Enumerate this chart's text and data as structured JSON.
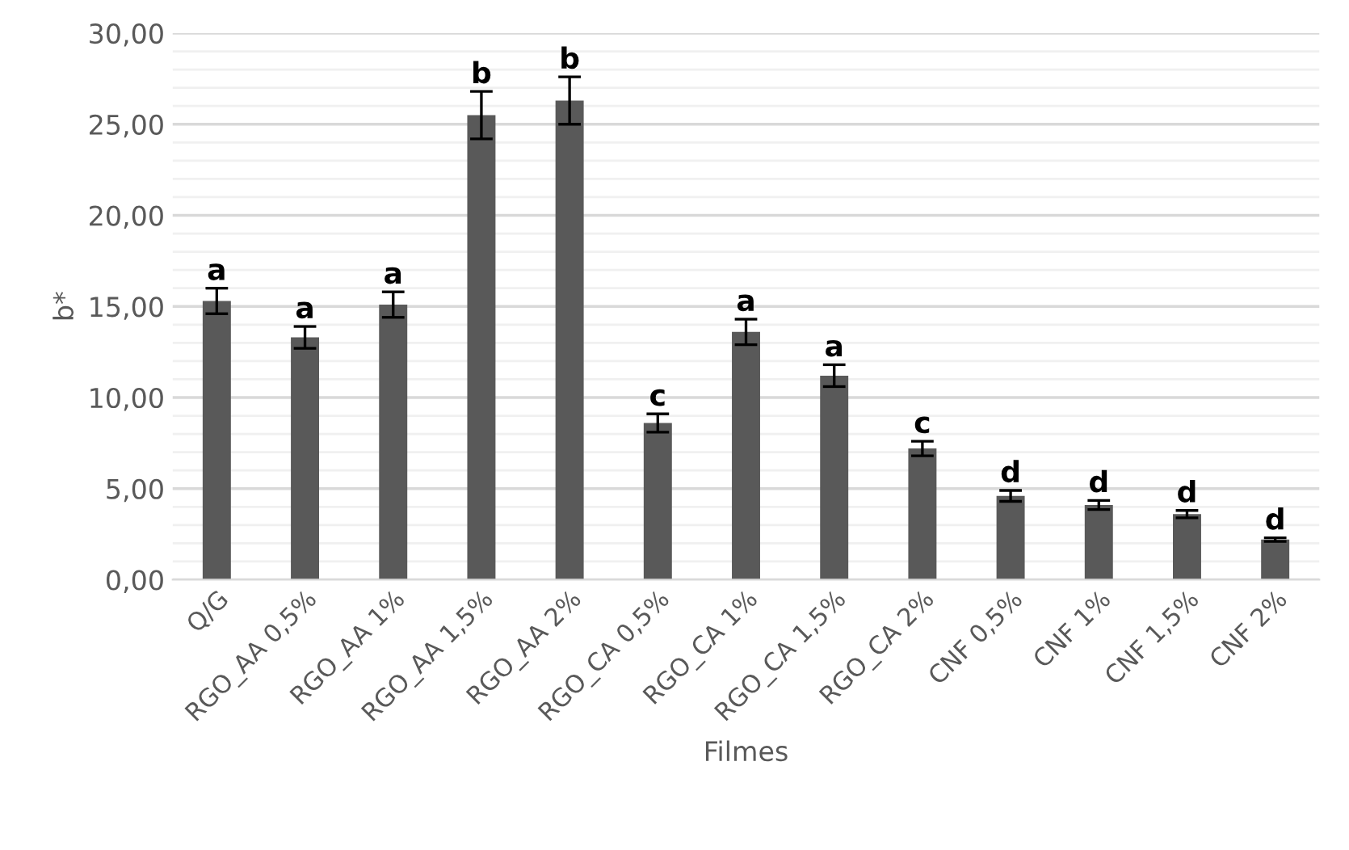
{
  "chart_data": {
    "type": "bar",
    "xlabel": "Filmes",
    "ylabel": "b*",
    "categories": [
      "Q/G",
      "RGO_AA 0,5%",
      "RGO_AA 1%",
      "RGO_AA 1,5%",
      "RGO_AA 2%",
      "RGO_CA 0,5%",
      "RGO_CA 1%",
      "RGO_CA 1,5%",
      "RGO_CA 2%",
      "CNF 0,5%",
      "CNF 1%",
      "CNF 1,5%",
      "CNF 2%"
    ],
    "values": [
      15.3,
      13.3,
      15.1,
      25.5,
      26.3,
      8.6,
      13.6,
      11.2,
      7.2,
      4.6,
      4.1,
      3.6,
      2.2
    ],
    "errors": [
      0.7,
      0.6,
      0.7,
      1.3,
      1.3,
      0.5,
      0.7,
      0.6,
      0.4,
      0.3,
      0.25,
      0.2,
      0.1
    ],
    "color": "#595959",
    "ylim": [
      0,
      30
    ],
    "yticks": [
      {
        "value": 0,
        "label": "0,00"
      },
      {
        "value": 1,
        "label": null
      },
      {
        "value": 2,
        "label": null
      },
      {
        "value": 3,
        "label": null
      },
      {
        "value": 4,
        "label": null
      },
      {
        "value": 5,
        "label": "5,00"
      },
      {
        "value": 6,
        "label": null
      },
      {
        "value": 7,
        "label": null
      },
      {
        "value": 8,
        "label": null
      },
      {
        "value": 9,
        "label": null
      },
      {
        "value": 10,
        "label": "10,00"
      },
      {
        "value": 11,
        "label": null
      },
      {
        "value": 12,
        "label": null
      },
      {
        "value": 13,
        "label": null
      },
      {
        "value": 14,
        "label": null
      },
      {
        "value": 15,
        "label": "15,00"
      },
      {
        "value": 16,
        "label": null
      },
      {
        "value": 17,
        "label": null
      },
      {
        "value": 18,
        "label": null
      },
      {
        "value": 19,
        "label": null
      },
      {
        "value": 20,
        "label": "20,00"
      },
      {
        "value": 21,
        "label": null
      },
      {
        "value": 22,
        "label": null
      },
      {
        "value": 23,
        "label": null
      },
      {
        "value": 24,
        "label": null
      },
      {
        "value": 25,
        "label": "25,00"
      },
      {
        "value": 26,
        "label": null
      },
      {
        "value": 27,
        "label": null
      },
      {
        "value": 28,
        "label": null
      },
      {
        "value": 29,
        "label": null
      },
      {
        "value": 30,
        "label": "30,00"
      }
    ],
    "grid": "y",
    "annotations": [
      {
        "text": "a",
        "x": "Q/G",
        "y": 16.0
      },
      {
        "text": "a",
        "x": "RGO_AA 0,5%",
        "y": 13.9
      },
      {
        "text": "a",
        "x": "RGO_AA 1%",
        "y": 15.8
      },
      {
        "text": "b",
        "x": "RGO_AA 1,5%",
        "y": 26.8
      },
      {
        "text": "b",
        "x": "RGO_AA 2%",
        "y": 27.6
      },
      {
        "text": "c",
        "x": "RGO_CA 0,5%",
        "y": 9.1
      },
      {
        "text": "a",
        "x": "RGO_CA 1%",
        "y": 14.3
      },
      {
        "text": "a",
        "x": "RGO_CA 1,5%",
        "y": 11.8
      },
      {
        "text": "c",
        "x": "RGO_CA 2%",
        "y": 7.6
      },
      {
        "text": "d",
        "x": "CNF 0,5%",
        "y": 4.9
      },
      {
        "text": "d",
        "x": "CNF 1%",
        "y": 4.35
      },
      {
        "text": "d",
        "x": "CNF 1,5%",
        "y": 3.8
      },
      {
        "text": "d",
        "x": "CNF 2%",
        "y": 2.3
      }
    ]
  }
}
